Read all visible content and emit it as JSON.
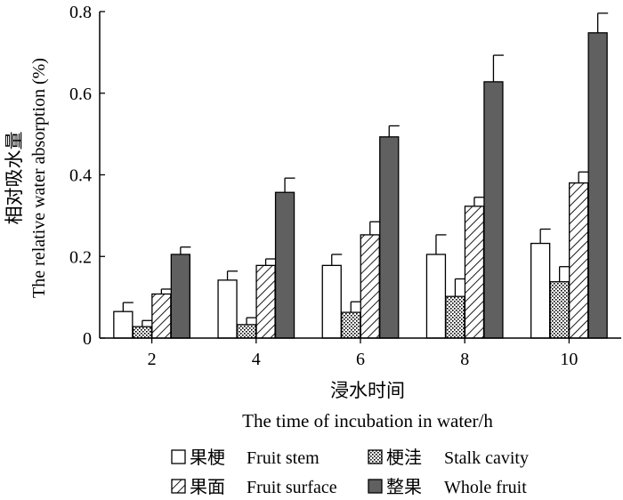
{
  "chart_data": {
    "type": "bar",
    "title": "",
    "xlabel_cn": "浸水时间",
    "xlabel_en": "The time of incubation in water/h",
    "ylabel_cn": "相对吸水量",
    "ylabel_en": "The relative water absorption (%)",
    "categories": [
      "2",
      "4",
      "6",
      "8",
      "10"
    ],
    "ylim": [
      0,
      0.8
    ],
    "yticks": [
      "0",
      "0.2",
      "0.4",
      "0.6",
      "0.8"
    ],
    "series": [
      {
        "name_cn": "果梗",
        "name_en": "Fruit stem",
        "pattern": "empty",
        "values": [
          0.065,
          0.142,
          0.178,
          0.205,
          0.232
        ],
        "errors": [
          0.022,
          0.022,
          0.027,
          0.048,
          0.035
        ]
      },
      {
        "name_cn": "梗洼",
        "name_en": "Stalk cavity",
        "pattern": "dots",
        "values": [
          0.028,
          0.033,
          0.063,
          0.102,
          0.138
        ],
        "errors": [
          0.015,
          0.017,
          0.026,
          0.043,
          0.037
        ]
      },
      {
        "name_cn": "果面",
        "name_en": "Fruit surface",
        "pattern": "hatch",
        "values": [
          0.108,
          0.178,
          0.253,
          0.323,
          0.38
        ],
        "errors": [
          0.012,
          0.016,
          0.032,
          0.022,
          0.027
        ]
      },
      {
        "name_cn": "整果",
        "name_en": "Whole fruit",
        "pattern": "solid",
        "values": [
          0.205,
          0.357,
          0.493,
          0.628,
          0.748
        ],
        "errors": [
          0.018,
          0.035,
          0.027,
          0.065,
          0.048
        ]
      }
    ],
    "legend_position": "bottom",
    "grid": false,
    "colors": {
      "solid": "#606060",
      "stroke": "#000000"
    }
  }
}
